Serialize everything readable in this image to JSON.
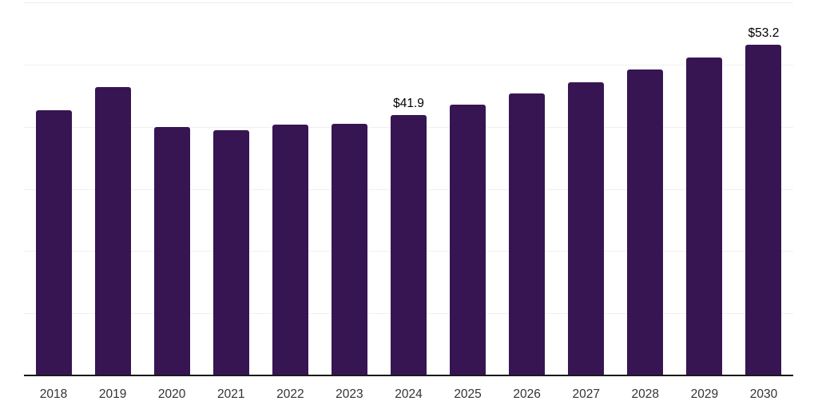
{
  "chart_data": {
    "type": "bar",
    "categories": [
      "2018",
      "2019",
      "2020",
      "2021",
      "2022",
      "2023",
      "2024",
      "2025",
      "2026",
      "2027",
      "2028",
      "2029",
      "2030"
    ],
    "values": [
      42.7,
      46.4,
      40.0,
      39.4,
      40.3,
      40.5,
      41.9,
      43.6,
      45.4,
      47.2,
      49.2,
      51.1,
      53.2
    ],
    "data_labels": [
      "",
      "",
      "",
      "",
      "",
      "",
      "$41.9",
      "",
      "",
      "",
      "",
      "",
      "$53.2"
    ],
    "title": "",
    "xlabel": "",
    "ylabel": "",
    "ylim": [
      0,
      60
    ],
    "gridline_step": 10,
    "grid": "horizontal",
    "legend": "none",
    "colors": {
      "bar": "#371553",
      "axis_line": "#1a1a1a",
      "gridline": "#f0f0f0",
      "tick_label": "#333333",
      "data_label": "#000000",
      "background": "#ffffff"
    }
  }
}
